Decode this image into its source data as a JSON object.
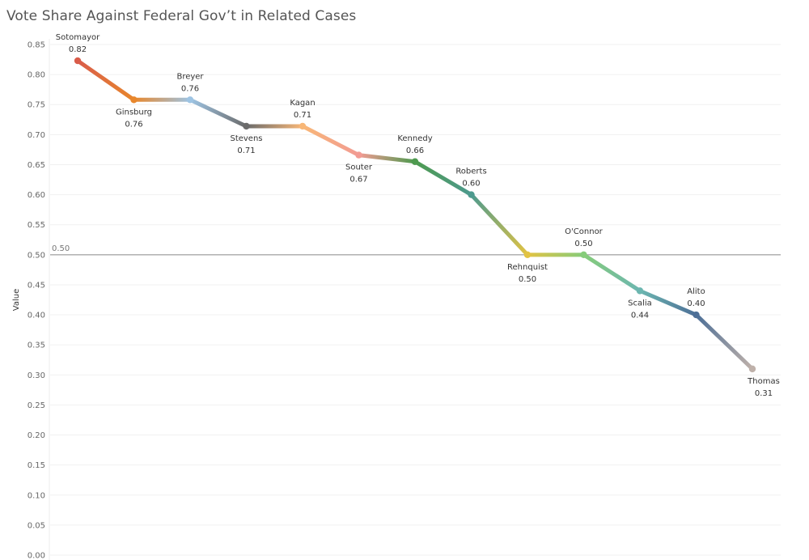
{
  "chart_data": {
    "type": "line",
    "title": "Vote Share Against Federal Gov’t in Related Cases",
    "xlabel": "",
    "ylabel": "Value",
    "ylim": [
      0,
      0.85
    ],
    "yticks": [
      "0.00",
      "0.05",
      "0.10",
      "0.15",
      "0.20",
      "0.25",
      "0.30",
      "0.35",
      "0.40",
      "0.45",
      "0.50",
      "0.55",
      "0.60",
      "0.65",
      "0.70",
      "0.75",
      "0.80",
      "0.85"
    ],
    "grid": true,
    "reference_line": {
      "value": 0.5,
      "label": "0.50"
    },
    "points": [
      {
        "name": "Sotomayor",
        "value": 0.823,
        "label": "0.82",
        "color": "#d95c4a",
        "label_pos": "above"
      },
      {
        "name": "Ginsburg",
        "value": 0.758,
        "label": "0.76",
        "color": "#e8872c",
        "label_pos": "below"
      },
      {
        "name": "Breyer",
        "value": 0.758,
        "label": "0.76",
        "color": "#9ec4e3",
        "label_pos": "above"
      },
      {
        "name": "Stevens",
        "value": 0.714,
        "label": "0.71",
        "color": "#6b6b6b",
        "label_pos": "below"
      },
      {
        "name": "Kagan",
        "value": 0.714,
        "label": "0.71",
        "color": "#f8b777",
        "label_pos": "above"
      },
      {
        "name": "Souter",
        "value": 0.666,
        "label": "0.67",
        "color": "#f29b93",
        "label_pos": "below"
      },
      {
        "name": "Kennedy",
        "value": 0.655,
        "label": "0.66",
        "color": "#4e9a4f",
        "label_pos": "above"
      },
      {
        "name": "Roberts",
        "value": 0.6,
        "label": "0.60",
        "color": "#4d9a8e",
        "label_pos": "above"
      },
      {
        "name": "Rehnquist",
        "value": 0.5,
        "label": "0.50",
        "color": "#e2c343",
        "label_pos": "below"
      },
      {
        "name": "O'Connor",
        "value": 0.5,
        "label": "0.50",
        "color": "#86cc7a",
        "label_pos": "above"
      },
      {
        "name": "Scalia",
        "value": 0.44,
        "label": "0.44",
        "color": "#6cb6b0",
        "label_pos": "below"
      },
      {
        "name": "Alito",
        "value": 0.4,
        "label": "0.40",
        "color": "#4d6f97",
        "label_pos": "above"
      },
      {
        "name": "Thomas",
        "value": 0.31,
        "label": "0.31",
        "color": "#bfb1aa",
        "label_pos": "below"
      }
    ]
  }
}
